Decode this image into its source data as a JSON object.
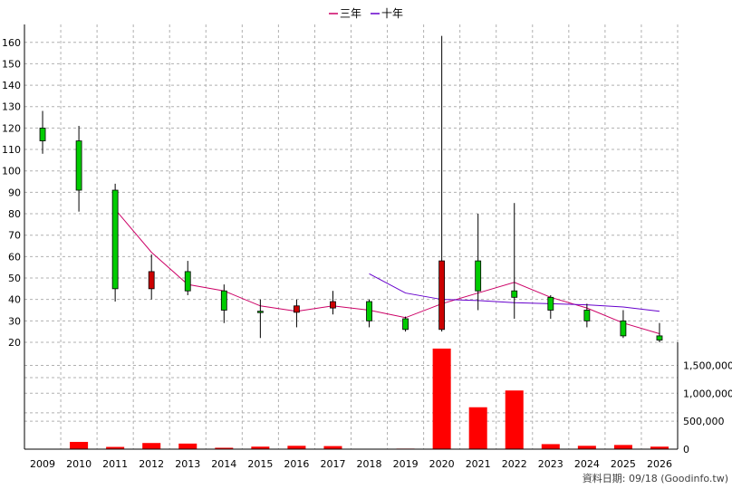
{
  "chart_data": {
    "type": "candlestick",
    "legend": {
      "placement": "top-center",
      "items": [
        {
          "name": "三年",
          "color": "#cc0066"
        },
        {
          "name": "十年",
          "color": "#6600cc"
        }
      ]
    },
    "source_note": "資料日期: 09/18  (Goodinfo.tw)",
    "categories": [
      "2009",
      "2010",
      "2011",
      "2012",
      "2013",
      "2014",
      "2015",
      "2016",
      "2017",
      "2018",
      "2019",
      "2020",
      "2021",
      "2022",
      "2023",
      "2024",
      "2025",
      "2026"
    ],
    "price_axis": {
      "ylim": [
        20,
        165
      ],
      "ticks": [
        "20",
        "30",
        "40",
        "50",
        "60",
        "70",
        "80",
        "90",
        "100",
        "110",
        "120",
        "130",
        "140",
        "150",
        "160"
      ],
      "grid": true
    },
    "volume_axis": {
      "ylim": [
        0,
        1900000
      ],
      "ticks": [
        "0",
        "500,000",
        "1,000,000",
        "1,500,000"
      ],
      "side": "right"
    },
    "candles": [
      {
        "open": 114,
        "close": 120,
        "high": 128,
        "low": 108
      },
      {
        "open": 91,
        "close": 114,
        "high": 121,
        "low": 81
      },
      {
        "open": 45,
        "close": 91,
        "high": 94,
        "low": 39
      },
      {
        "open": 53,
        "close": 45,
        "high": 61,
        "low": 40
      },
      {
        "open": 44,
        "close": 53,
        "high": 58,
        "low": 42
      },
      {
        "open": 35,
        "close": 44,
        "high": 47,
        "low": 29
      },
      {
        "open": 34,
        "close": 34.5,
        "high": 40,
        "low": 22
      },
      {
        "open": 37,
        "close": 34,
        "high": 40,
        "low": 27
      },
      {
        "open": 39,
        "close": 36,
        "high": 44,
        "low": 33
      },
      {
        "open": 30,
        "close": 39,
        "high": 40,
        "low": 27
      },
      {
        "open": 26,
        "close": 31,
        "high": 32,
        "low": 25
      },
      {
        "open": 58,
        "close": 26,
        "high": 163,
        "low": 25
      },
      {
        "open": 44,
        "close": 58,
        "high": 80,
        "low": 35
      },
      {
        "open": 41,
        "close": 44,
        "high": 85,
        "low": 31
      },
      {
        "open": 35,
        "close": 41,
        "high": 42,
        "low": 31
      },
      {
        "open": 30,
        "close": 35,
        "high": 38,
        "low": 27
      },
      {
        "open": 23,
        "close": 30,
        "high": 35,
        "low": 22
      },
      {
        "open": 21,
        "close": 23,
        "high": 29,
        "low": 20
      }
    ],
    "series": [
      {
        "name": "三年",
        "color": "#cc0066",
        "values": [
          null,
          null,
          82,
          62,
          47,
          44,
          37,
          34.5,
          37,
          35,
          31.5,
          38,
          43,
          48,
          41,
          36,
          29,
          24
        ]
      },
      {
        "name": "十年",
        "color": "#6600cc",
        "values": [
          null,
          null,
          null,
          null,
          null,
          null,
          null,
          null,
          null,
          52,
          43,
          40,
          39.5,
          38.5,
          38,
          37.5,
          36.5,
          34.5
        ]
      }
    ],
    "volume": [
      0,
      130000,
      40000,
      110000,
      100000,
      25000,
      45000,
      60000,
      55000,
      8000,
      10000,
      1800000,
      750000,
      1050000,
      90000,
      60000,
      75000,
      45000
    ]
  }
}
